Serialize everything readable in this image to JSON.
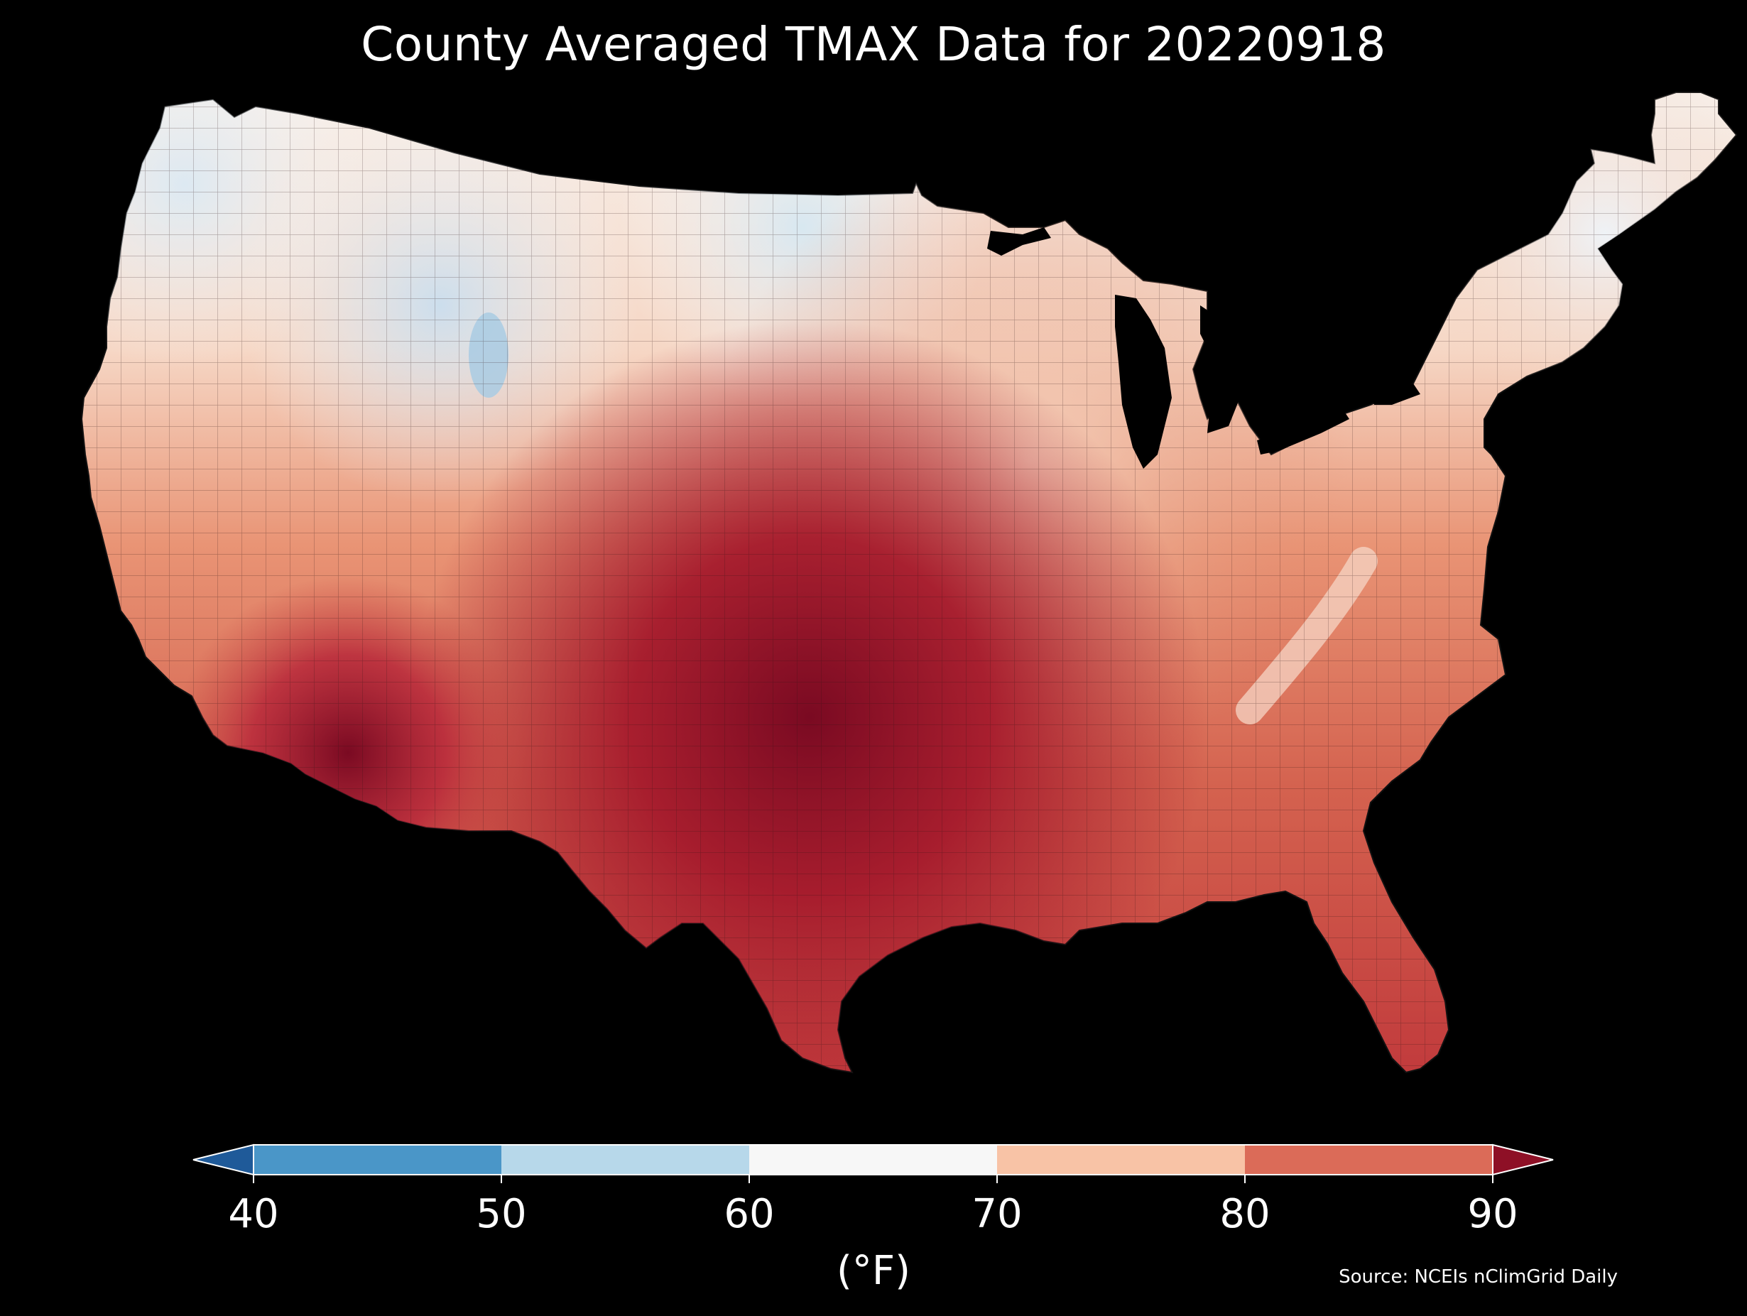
{
  "title": "County Averaged TMAX Data for 20220918",
  "legend": {
    "unit_label": "(°F)",
    "ticks": [
      "40",
      "50",
      "60",
      "70",
      "80",
      "90"
    ],
    "bins": [
      {
        "range": "<40",
        "color": "#1f5a99"
      },
      {
        "range": "40-50",
        "color": "#4a96c8"
      },
      {
        "range": "50-60",
        "color": "#b7d8ea"
      },
      {
        "range": "60-70",
        "color": "#f7f7f7"
      },
      {
        "range": "70-80",
        "color": "#f8c3a6"
      },
      {
        "range": "80-90",
        "color": "#db6b58"
      },
      {
        "range": ">90",
        "color": "#8e1026"
      }
    ],
    "extend": "both",
    "orientation": "horizontal",
    "placement": "bottom"
  },
  "source": "Source: NCEIs nClimGrid Daily",
  "map": {
    "region": "Contiguous United States",
    "units": "county",
    "variable": "TMAX",
    "date": "20220918",
    "background": "#000000",
    "county_borders": "#000000"
  }
}
